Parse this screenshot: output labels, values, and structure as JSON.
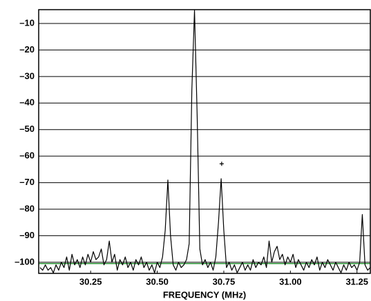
{
  "chart_data": {
    "type": "line",
    "xlabel": "FREQUENCY (MHz)",
    "x": [
      30.06,
      30.07,
      30.08,
      30.09,
      30.1,
      30.11,
      30.12,
      30.13,
      30.14,
      30.15,
      30.16,
      30.17,
      30.18,
      30.19,
      30.2,
      30.21,
      30.22,
      30.23,
      30.24,
      30.25,
      30.26,
      30.27,
      30.28,
      30.29,
      30.3,
      30.31,
      30.32,
      30.33,
      30.34,
      30.35,
      30.36,
      30.37,
      30.38,
      30.39,
      30.4,
      30.41,
      30.42,
      30.43,
      30.44,
      30.45,
      30.46,
      30.47,
      30.48,
      30.49,
      30.5,
      30.51,
      30.52,
      30.53,
      30.54,
      30.55,
      30.56,
      30.57,
      30.58,
      30.59,
      30.6,
      30.61,
      30.62,
      30.63,
      30.64,
      30.65,
      30.66,
      30.67,
      30.68,
      30.69,
      30.7,
      30.71,
      30.72,
      30.73,
      30.74,
      30.75,
      30.76,
      30.77,
      30.78,
      30.79,
      30.8,
      30.81,
      30.82,
      30.83,
      30.84,
      30.85,
      30.86,
      30.87,
      30.88,
      30.89,
      30.9,
      30.91,
      30.92,
      30.93,
      30.94,
      30.95,
      30.96,
      30.97,
      30.98,
      30.99,
      31.0,
      31.01,
      31.02,
      31.03,
      31.04,
      31.05,
      31.06,
      31.07,
      31.08,
      31.09,
      31.1,
      31.11,
      31.12,
      31.13,
      31.14,
      31.15,
      31.16,
      31.17,
      31.18,
      31.19,
      31.2,
      31.21,
      31.22,
      31.23,
      31.24,
      31.25,
      31.26,
      31.27,
      31.28,
      31.29,
      31.3
    ],
    "values": [
      -102,
      -103,
      -101,
      -103,
      -102,
      -104,
      -101,
      -103,
      -100,
      -102,
      -98,
      -103,
      -97,
      -101,
      -99,
      -102,
      -98,
      -101,
      -97,
      -100,
      -96,
      -99,
      -98,
      -95,
      -101,
      -99,
      -92,
      -100,
      -97,
      -103,
      -99,
      -101,
      -98,
      -102,
      -100,
      -103,
      -99,
      -101,
      -98,
      -102,
      -100,
      -103,
      -101,
      -104,
      -100,
      -102,
      -98,
      -88,
      -69,
      -90,
      -101,
      -103,
      -100,
      -102,
      -101,
      -99,
      -93,
      -35,
      -5,
      -45,
      -95,
      -101,
      -99,
      -102,
      -100,
      -103,
      -98,
      -85,
      -68.5,
      -88,
      -102,
      -100,
      -103,
      -101,
      -104,
      -102,
      -100,
      -103,
      -101,
      -103,
      -99,
      -102,
      -100,
      -101,
      -98,
      -102,
      -92,
      -100,
      -96,
      -94,
      -99,
      -97,
      -101,
      -98,
      -100,
      -97,
      -102,
      -99,
      -101,
      -103,
      -100,
      -102,
      -99,
      -101,
      -98,
      -103,
      -100,
      -102,
      -99,
      -101,
      -103,
      -100,
      -102,
      -104,
      -101,
      -103,
      -100,
      -102,
      -101,
      -103,
      -100,
      -82,
      -101,
      -103,
      -102
    ],
    "color": "#000000",
    "xlim": [
      30.055,
      31.3
    ],
    "ylim": [
      -104.2,
      -4.8
    ],
    "xticks": [
      30.25,
      {
        "value": 30.5,
        "label": "30.50"
      },
      30.75,
      {
        "value": 31.0,
        "label": "31.00"
      },
      31.25
    ],
    "yticks": [
      {
        "value": -10,
        "label": "–10"
      },
      {
        "value": -20,
        "label": "–20"
      },
      {
        "value": -30,
        "label": "–30"
      },
      {
        "value": -40,
        "label": "–40"
      },
      {
        "value": -50,
        "label": "–50"
      },
      {
        "value": -60,
        "label": "–60"
      },
      {
        "value": -70,
        "label": "–70"
      },
      {
        "value": -80,
        "label": "–80"
      },
      {
        "value": -90,
        "label": "–90"
      },
      {
        "value": -100,
        "label": "–100"
      }
    ],
    "grid": true,
    "reference_line": {
      "value": -100.5,
      "color": "#2f9a3a"
    },
    "marker": {
      "x": 30.742,
      "y": -62.9
    }
  }
}
